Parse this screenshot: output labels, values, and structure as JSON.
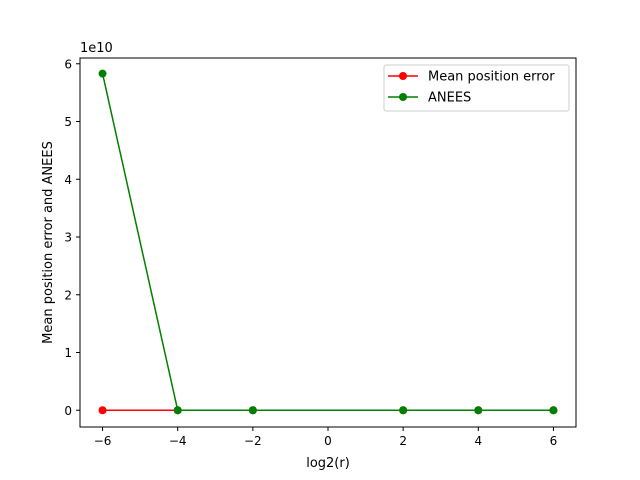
{
  "chart_data": {
    "type": "line",
    "title": "",
    "xlabel": "log2(r)",
    "ylabel": "Mean position error and ANEES",
    "y_offset_label": "1e10",
    "y_scale_factor": 10000000000,
    "xlim": [
      -6.6,
      6.6
    ],
    "ylim": [
      -0.29,
      6.1
    ],
    "x_ticks": [
      -6,
      -4,
      -2,
      0,
      2,
      4,
      6
    ],
    "x_tick_labels": [
      "−6",
      "−4",
      "−2",
      "0",
      "2",
      "4",
      "6"
    ],
    "y_ticks": [
      0,
      1,
      2,
      3,
      4,
      5,
      6
    ],
    "y_tick_labels": [
      "0",
      "1",
      "2",
      "3",
      "4",
      "5",
      "6"
    ],
    "grid": false,
    "legend_position": "top-right",
    "x": [
      -6,
      -4,
      -2,
      2,
      4,
      6
    ],
    "series": [
      {
        "name": "Mean position error",
        "color": "#ff0000",
        "marker": "circle",
        "values": [
          0,
          0,
          0,
          0,
          0,
          0
        ]
      },
      {
        "name": "ANEES",
        "color": "#008000",
        "marker": "circle",
        "values": [
          5.83,
          0,
          0,
          0,
          0,
          0
        ]
      }
    ]
  }
}
